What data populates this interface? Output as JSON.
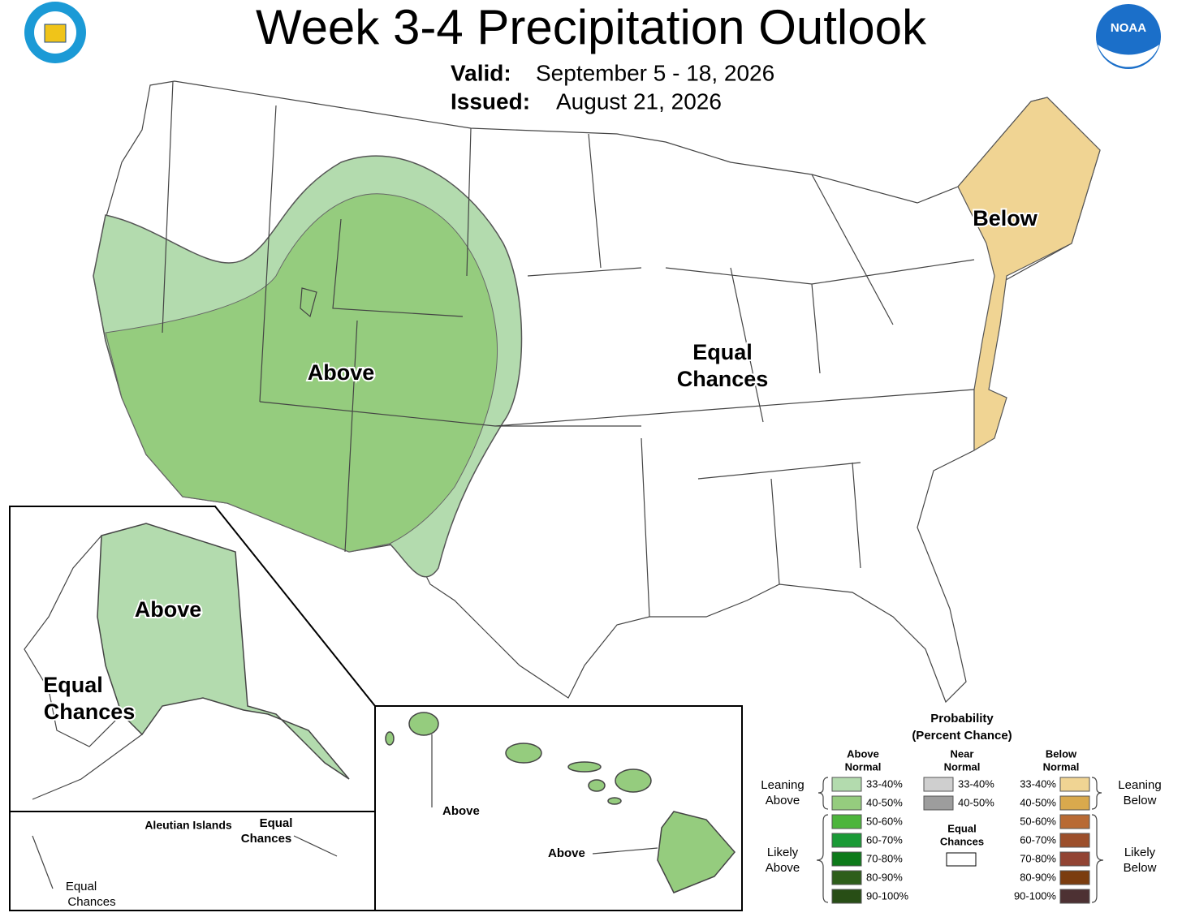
{
  "header": {
    "title": "Week 3-4 Precipitation Outlook",
    "valid_label": "Valid:",
    "valid": "September 5 - 18, 2026",
    "issued_label": "Issued:",
    "issued": "August 21, 2026"
  },
  "logos": {
    "noaa": "NOAA"
  },
  "conus": {
    "above": "Above",
    "equal": [
      "Equal",
      "Chances"
    ],
    "below": "Below"
  },
  "alaska": {
    "above": "Above",
    "equal": [
      "Equal",
      "Chances"
    ]
  },
  "aleutians": {
    "title": "Aleutian Islands",
    "equal_east": [
      "Equal",
      "Chances"
    ],
    "equal_west": [
      "Equal",
      "Chances"
    ]
  },
  "hawaii": {
    "above_north": "Above",
    "above_south": "Above"
  },
  "legend": {
    "title": [
      "Probability",
      "(Percent Chance)"
    ],
    "above_header": [
      "Above",
      "Normal"
    ],
    "near_header": [
      "Near",
      "Normal"
    ],
    "below_header": [
      "Below",
      "Normal"
    ],
    "above_ranges": [
      "33-40%",
      "40-50%",
      "50-60%",
      "60-70%",
      "70-80%",
      "80-90%",
      "90-100%"
    ],
    "above_colors": [
      "#b3dbae",
      "#95cc7e",
      "#4db53c",
      "#1a9a36",
      "#0d7a1a",
      "#2e5e1a",
      "#284e16"
    ],
    "near_ranges": [
      "33-40%",
      "40-50%"
    ],
    "near_colors": [
      "#cfcfcf",
      "#9d9d9d"
    ],
    "below_ranges": [
      "33-40%",
      "40-50%",
      "50-60%",
      "60-70%",
      "70-80%",
      "80-90%",
      "90-100%"
    ],
    "below_colors": [
      "#f0d493",
      "#d9a94d",
      "#b86a34",
      "#9c4f2b",
      "#924433",
      "#7b3d0f",
      "#4d3133"
    ],
    "equal_chances": [
      "Equal",
      "Chances"
    ],
    "leaning_above": [
      "Leaning",
      "Above"
    ],
    "likely_above": [
      "Likely",
      "Above"
    ],
    "leaning_below": [
      "Leaning",
      "Below"
    ],
    "likely_below": [
      "Likely",
      "Below"
    ]
  }
}
